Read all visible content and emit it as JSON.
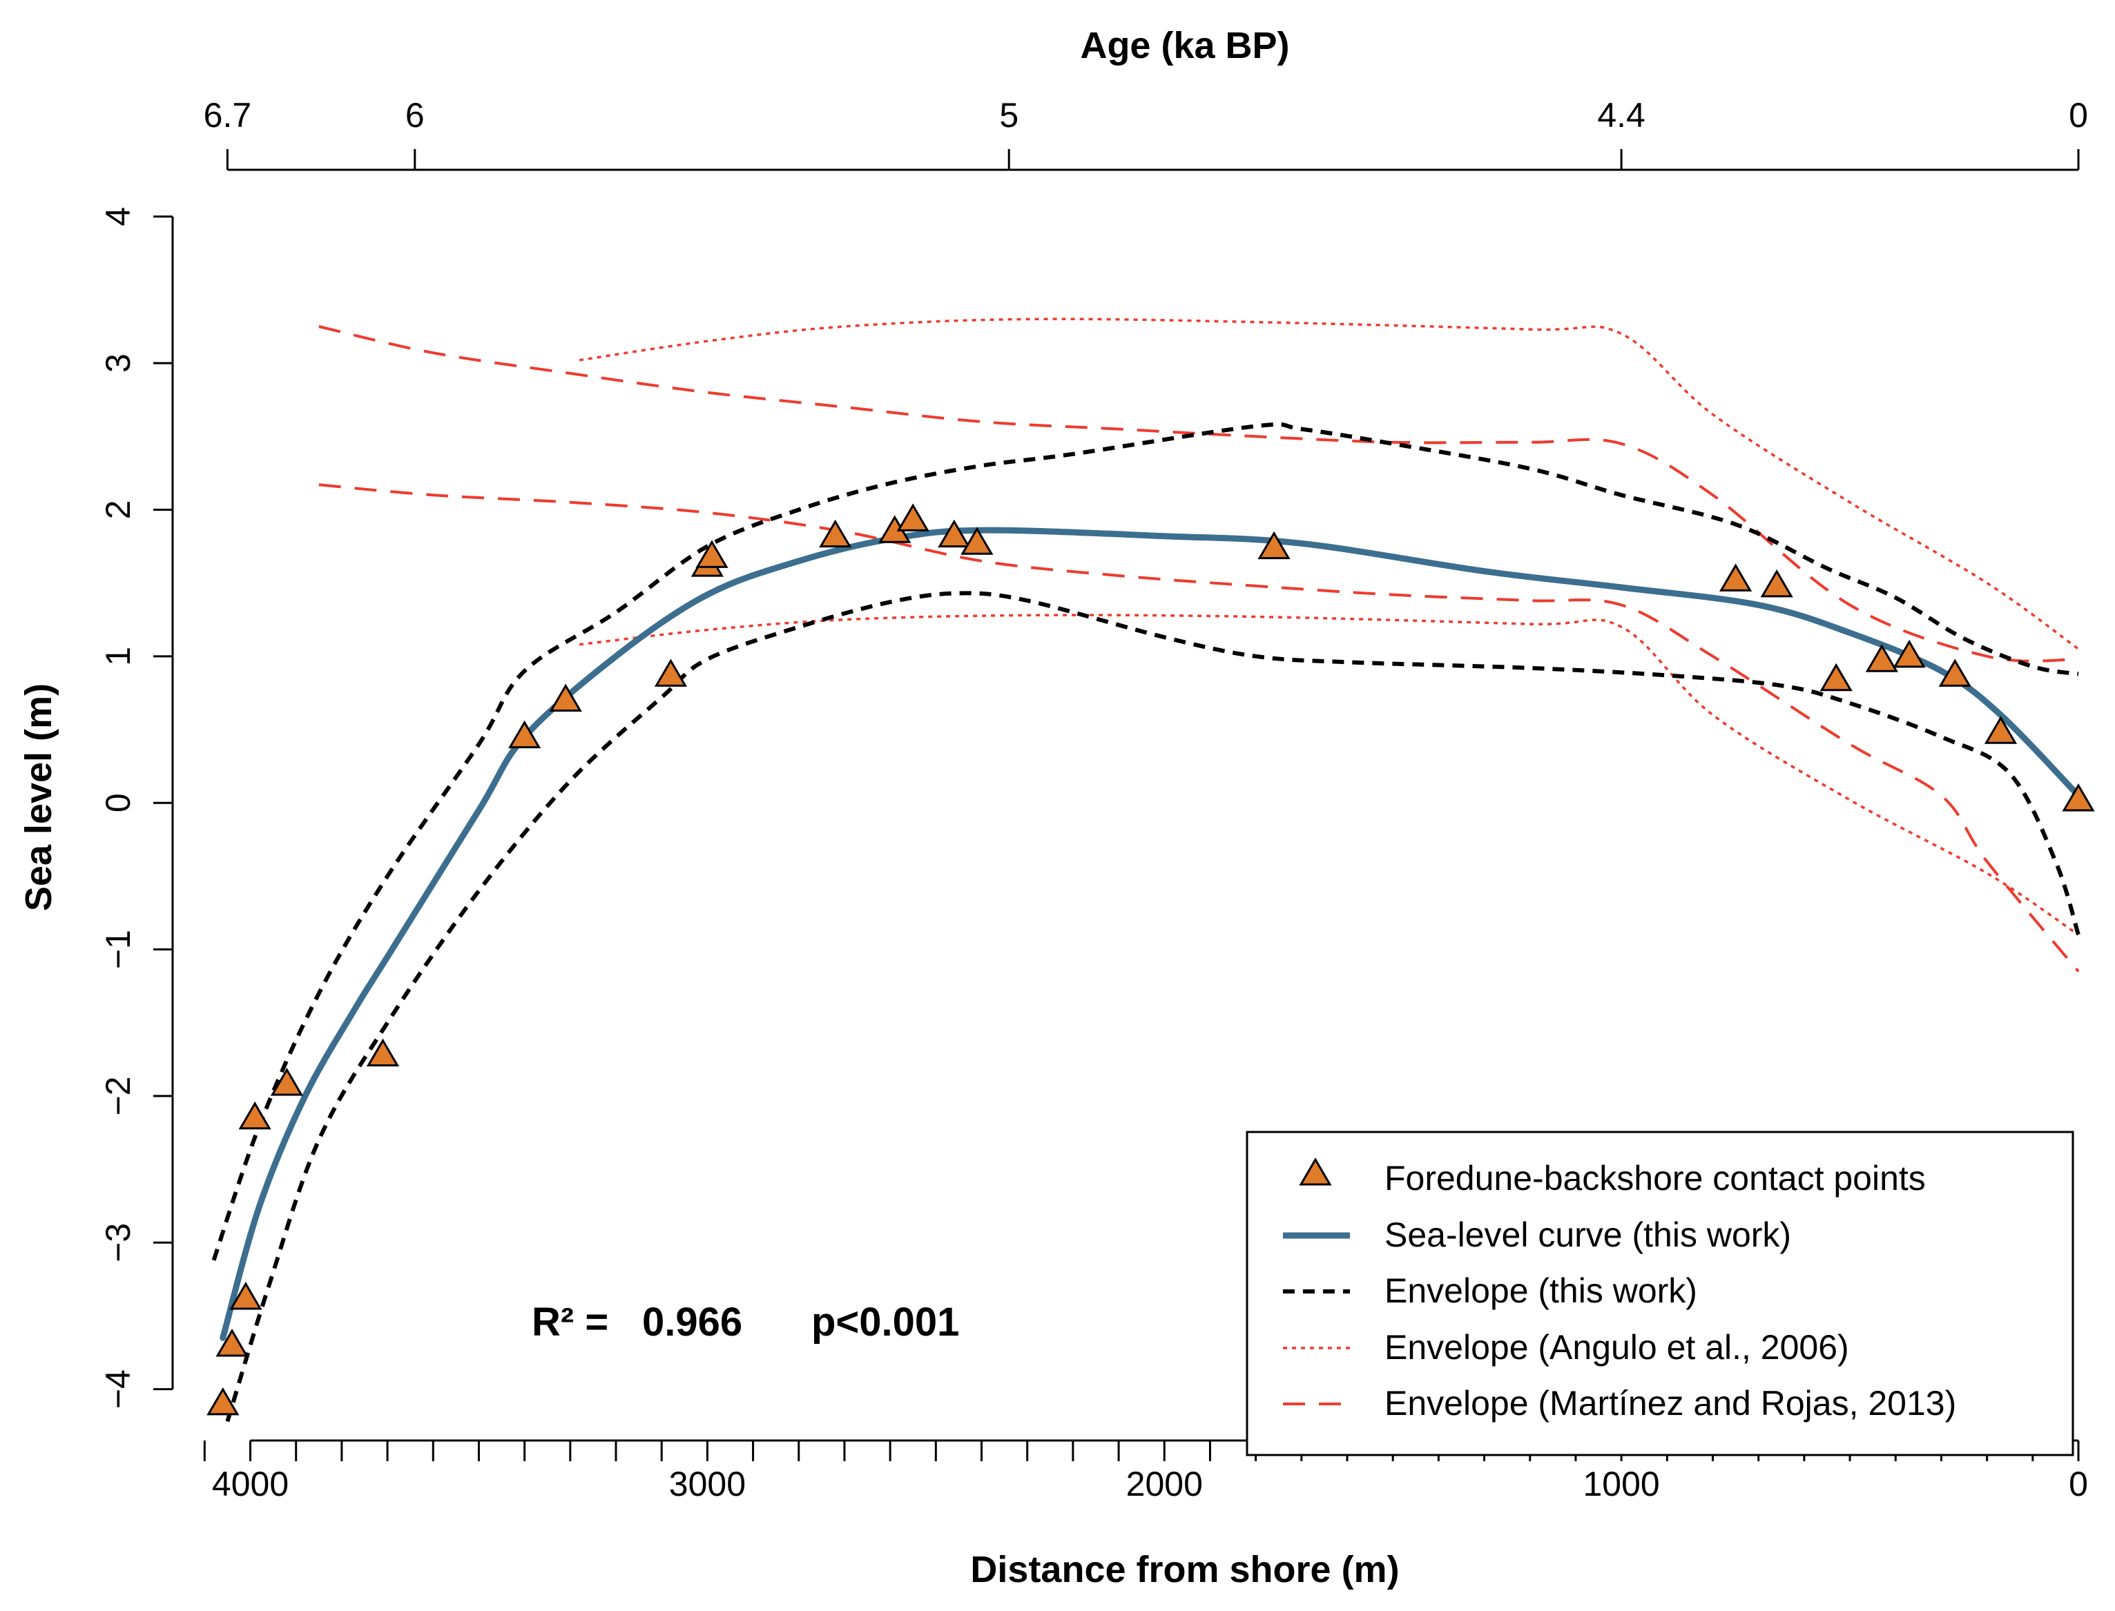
{
  "chart_data": {
    "type": "scatter",
    "xlabel": "Distance from shore (m)",
    "ylabel": "Sea level (m)",
    "top_axis_label": "Age (ka BP)",
    "xlim": [
      4170,
      0
    ],
    "ylim": [
      -4.35,
      4.3
    ],
    "x_ticks": [
      4000,
      3000,
      2000,
      1000,
      0
    ],
    "x_tick_labels": [
      "4000",
      "3000",
      "2000",
      "1000",
      "0"
    ],
    "x_minor_ticks": [
      4100,
      3900,
      3800,
      3700,
      3600,
      3500,
      3400,
      3300,
      3200,
      3100,
      2900,
      2800,
      2700,
      2600,
      2500,
      2400,
      2300,
      2200,
      2100,
      1900,
      1800,
      1700,
      1600,
      1500,
      1400,
      1300,
      1200,
      1100,
      900,
      800,
      700,
      600,
      500,
      400,
      300,
      200,
      100
    ],
    "y_ticks": [
      4,
      3,
      2,
      1,
      0,
      -1,
      -2,
      -3,
      -4
    ],
    "y_tick_labels": [
      "4",
      "3",
      "2",
      "1",
      "0",
      "−1",
      "−2",
      "−3",
      "−4"
    ],
    "top_ticks": [
      {
        "distance": 4050,
        "label": "6.7"
      },
      {
        "distance": 3640,
        "label": "6"
      },
      {
        "distance": 2340,
        "label": "5"
      },
      {
        "distance": 1000,
        "label": "4.4"
      },
      {
        "distance": 0,
        "label": "0"
      }
    ],
    "annotation": {
      "r2_label": "R² =",
      "r2_value": "0.966",
      "p_value": "p<0.001"
    },
    "series": [
      {
        "name": "Foredune-backshore contact points",
        "kind": "points",
        "color": "#E07B2A",
        "points": [
          [
            4060,
            -4.1
          ],
          [
            4040,
            -3.7
          ],
          [
            4010,
            -3.38
          ],
          [
            3990,
            -2.15
          ],
          [
            3920,
            -1.92
          ],
          [
            3710,
            -1.72
          ],
          [
            3400,
            0.45
          ],
          [
            3310,
            0.7
          ],
          [
            3080,
            0.87
          ],
          [
            3000,
            1.62
          ],
          [
            2990,
            1.68
          ],
          [
            2720,
            1.82
          ],
          [
            2590,
            1.85
          ],
          [
            2550,
            1.93
          ],
          [
            2460,
            1.82
          ],
          [
            2410,
            1.77
          ],
          [
            1760,
            1.74
          ],
          [
            750,
            1.52
          ],
          [
            660,
            1.48
          ],
          [
            530,
            0.84
          ],
          [
            430,
            0.97
          ],
          [
            370,
            1.0
          ],
          [
            270,
            0.87
          ],
          [
            170,
            0.48
          ],
          [
            0,
            0.02
          ]
        ]
      },
      {
        "name": "Sea-level curve (this work)",
        "kind": "solid",
        "color": "#3C6E8F",
        "points": [
          [
            4060,
            -3.65
          ],
          [
            3980,
            -2.75
          ],
          [
            3880,
            -2.0
          ],
          [
            3770,
            -1.4
          ],
          [
            3700,
            -1.05
          ],
          [
            3500,
            -0.05
          ],
          [
            3400,
            0.45
          ],
          [
            3200,
            1.0
          ],
          [
            3000,
            1.42
          ],
          [
            2800,
            1.65
          ],
          [
            2600,
            1.8
          ],
          [
            2400,
            1.86
          ],
          [
            2000,
            1.82
          ],
          [
            1700,
            1.77
          ],
          [
            1300,
            1.58
          ],
          [
            1000,
            1.47
          ],
          [
            700,
            1.35
          ],
          [
            500,
            1.16
          ],
          [
            300,
            0.9
          ],
          [
            170,
            0.6
          ],
          [
            0,
            0.05
          ]
        ]
      },
      {
        "name": "Envelope (this work)",
        "kind": "dashed-black",
        "color": "#000000",
        "lines": [
          [
            [
              4080,
              -3.12
            ],
            [
              3980,
              -2.2
            ],
            [
              3850,
              -1.3
            ],
            [
              3700,
              -0.5
            ],
            [
              3500,
              0.4
            ],
            [
              3400,
              0.9
            ],
            [
              3200,
              1.3
            ],
            [
              3000,
              1.75
            ],
            [
              2800,
              2.0
            ],
            [
              2600,
              2.18
            ],
            [
              2400,
              2.3
            ],
            [
              2200,
              2.38
            ],
            [
              1800,
              2.57
            ],
            [
              1700,
              2.55
            ],
            [
              1500,
              2.45
            ],
            [
              1200,
              2.28
            ],
            [
              1000,
              2.1
            ],
            [
              750,
              1.9
            ],
            [
              550,
              1.6
            ],
            [
              400,
              1.4
            ],
            [
              250,
              1.12
            ],
            [
              100,
              0.93
            ],
            [
              0,
              0.88
            ]
          ],
          [
            [
              4050,
              -4.22
            ],
            [
              3960,
              -3.3
            ],
            [
              3850,
              -2.3
            ],
            [
              3700,
              -1.5
            ],
            [
              3500,
              -0.6
            ],
            [
              3300,
              0.15
            ],
            [
              3100,
              0.72
            ],
            [
              3000,
              0.98
            ],
            [
              2800,
              1.2
            ],
            [
              2600,
              1.37
            ],
            [
              2450,
              1.43
            ],
            [
              2300,
              1.38
            ],
            [
              2000,
              1.13
            ],
            [
              1800,
              1.0
            ],
            [
              1600,
              0.96
            ],
            [
              1200,
              0.92
            ],
            [
              900,
              0.87
            ],
            [
              650,
              0.8
            ],
            [
              500,
              0.68
            ],
            [
              300,
              0.45
            ],
            [
              150,
              0.2
            ],
            [
              50,
              -0.4
            ],
            [
              0,
              -0.9
            ]
          ]
        ]
      },
      {
        "name": "Envelope (Angulo et al., 2006)",
        "kind": "dotted-red",
        "color": "#EE3B2E",
        "lines": [
          [
            [
              3280,
              3.02
            ],
            [
              3000,
              3.15
            ],
            [
              2700,
              3.25
            ],
            [
              2300,
              3.3
            ],
            [
              1800,
              3.28
            ],
            [
              1200,
              3.23
            ],
            [
              1000,
              3.2
            ],
            [
              800,
              2.65
            ],
            [
              500,
              2.05
            ],
            [
              200,
              1.5
            ],
            [
              0,
              1.05
            ]
          ],
          [
            [
              3280,
              1.08
            ],
            [
              3000,
              1.18
            ],
            [
              2700,
              1.25
            ],
            [
              2300,
              1.28
            ],
            [
              1800,
              1.27
            ],
            [
              1200,
              1.22
            ],
            [
              1000,
              1.2
            ],
            [
              800,
              0.6
            ],
            [
              500,
              0.02
            ],
            [
              200,
              -0.48
            ],
            [
              0,
              -0.9
            ]
          ]
        ]
      },
      {
        "name": "Envelope (Martínez and Rojas, 2013)",
        "kind": "dashed-red",
        "color": "#EE3B2E",
        "lines": [
          [
            [
              3850,
              3.25
            ],
            [
              3600,
              3.07
            ],
            [
              3300,
              2.93
            ],
            [
              3000,
              2.8
            ],
            [
              2700,
              2.7
            ],
            [
              2400,
              2.6
            ],
            [
              2100,
              2.55
            ],
            [
              1800,
              2.5
            ],
            [
              1500,
              2.46
            ],
            [
              1200,
              2.46
            ],
            [
              1000,
              2.45
            ],
            [
              800,
              2.1
            ],
            [
              500,
              1.35
            ],
            [
              200,
              1.0
            ],
            [
              0,
              0.98
            ]
          ],
          [
            [
              3850,
              2.17
            ],
            [
              3600,
              2.1
            ],
            [
              3300,
              2.05
            ],
            [
              3000,
              1.98
            ],
            [
              2700,
              1.85
            ],
            [
              2400,
              1.65
            ],
            [
              2100,
              1.55
            ],
            [
              1800,
              1.48
            ],
            [
              1500,
              1.42
            ],
            [
              1200,
              1.38
            ],
            [
              1000,
              1.35
            ],
            [
              800,
              1.0
            ],
            [
              500,
              0.4
            ],
            [
              300,
              0.05
            ],
            [
              200,
              -0.4
            ],
            [
              0,
              -1.15
            ]
          ]
        ]
      }
    ],
    "legend": {
      "position": "bottom-right",
      "entries": [
        {
          "label": "Foredune-backshore contact points",
          "symbol": "triangle"
        },
        {
          "label": "Sea-level curve (this work)",
          "symbol": "solid"
        },
        {
          "label": "Envelope (this work)",
          "symbol": "dashed-black"
        },
        {
          "label": "Envelope (Angulo et al., 2006)",
          "symbol": "dotted-red"
        },
        {
          "label": "Envelope (Martínez and Rojas, 2013)",
          "symbol": "dashed-red"
        }
      ]
    }
  }
}
